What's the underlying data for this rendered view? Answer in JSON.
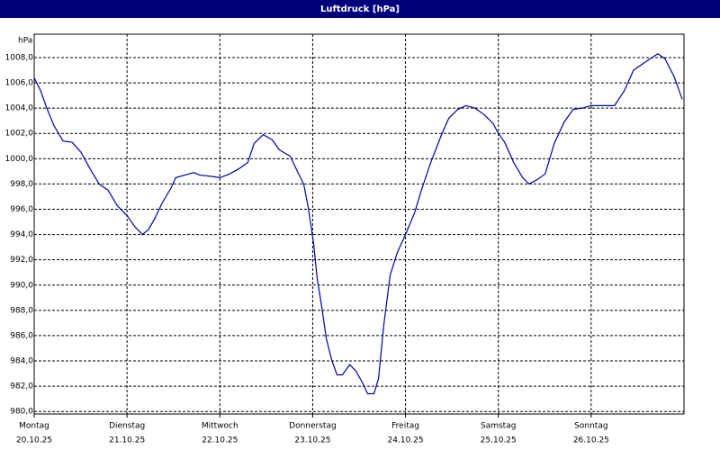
{
  "chart_data": {
    "type": "line",
    "title": "Luftdruck [hPa]",
    "y_label": "hPa",
    "color": "#0000a0",
    "grid": true,
    "xlim": [
      0,
      7
    ],
    "xticks": [
      {
        "value": 0,
        "label": "Montag",
        "date": "20.10.25"
      },
      {
        "value": 1,
        "label": "Dienstag",
        "date": "21.10.25"
      },
      {
        "value": 2,
        "label": "Mittwoch",
        "date": "22.10.25"
      },
      {
        "value": 3,
        "label": "Donnerstag",
        "date": "23.10.25"
      },
      {
        "value": 4,
        "label": "Freitag",
        "date": "24.10.25"
      },
      {
        "value": 5,
        "label": "Samstag",
        "date": "25.10.25"
      },
      {
        "value": 6,
        "label": "Sonntag",
        "date": "26.10.25"
      }
    ],
    "ylim": [
      979.8,
      1009.85
    ],
    "yticks": [
      {
        "value": 980,
        "label": "980,0"
      },
      {
        "value": 982,
        "label": "982,0"
      },
      {
        "value": 984,
        "label": "984,0"
      },
      {
        "value": 986,
        "label": "986,0"
      },
      {
        "value": 988,
        "label": "988,0"
      },
      {
        "value": 990,
        "label": "990,0"
      },
      {
        "value": 992,
        "label": "992,0"
      },
      {
        "value": 994,
        "label": "994,0"
      },
      {
        "value": 996,
        "label": "996,0"
      },
      {
        "value": 998,
        "label": "998,0"
      },
      {
        "value": 1000,
        "label": "1000,0"
      },
      {
        "value": 1002,
        "label": "1002,0"
      },
      {
        "value": 1004,
        "label": "1004,0"
      },
      {
        "value": 1006,
        "label": "1006,0"
      },
      {
        "value": 1008,
        "label": "1008,0"
      }
    ],
    "x": [
      0,
      0.068,
      0.136,
      0.214,
      0.311,
      0.408,
      0.505,
      0.602,
      0.699,
      0.796,
      0.893,
      1.0,
      1.087,
      1.165,
      1.233,
      1.301,
      1.379,
      1.476,
      1.524,
      1.621,
      1.718,
      1.786,
      1.913,
      2.0,
      2.107,
      2.204,
      2.301,
      2.369,
      2.466,
      2.563,
      2.641,
      2.757,
      2.835,
      2.903,
      2.951,
      3.01,
      3.049,
      3.097,
      3.146,
      3.204,
      3.262,
      3.32,
      3.398,
      3.466,
      3.534,
      3.592,
      3.66,
      3.709,
      3.767,
      3.835,
      3.913,
      4.0,
      4.097,
      4.175,
      4.272,
      4.388,
      4.466,
      4.563,
      4.65,
      4.748,
      4.845,
      4.942,
      5.0,
      5.068,
      5.165,
      5.262,
      5.33,
      5.408,
      5.505,
      5.602,
      5.709,
      5.806,
      5.903,
      6.0,
      6.097,
      6.252,
      6.359,
      6.456,
      6.573,
      6.718,
      6.796,
      6.893,
      6.981
    ],
    "values": [
      1006.4,
      1005.4,
      1004.0,
      1002.6,
      1001.4,
      1001.3,
      1000.5,
      999.2,
      998.0,
      997.5,
      996.3,
      995.5,
      994.6,
      994.0,
      994.4,
      995.3,
      996.5,
      997.7,
      998.5,
      998.7,
      998.9,
      998.7,
      998.6,
      998.5,
      998.8,
      999.2,
      999.7,
      1001.2,
      1001.9,
      1001.5,
      1000.7,
      1000.2,
      999.0,
      998.0,
      996.2,
      993.3,
      990.5,
      988.3,
      985.8,
      984.1,
      982.9,
      982.9,
      983.7,
      983.2,
      982.3,
      981.4,
      981.4,
      982.6,
      986.9,
      990.8,
      992.6,
      994.0,
      995.7,
      997.6,
      999.7,
      1001.9,
      1003.2,
      1003.9,
      1004.2,
      1004.0,
      1003.5,
      1002.8,
      1002.0,
      1001.3,
      999.7,
      998.5,
      998.0,
      998.3,
      998.8,
      1001.2,
      1002.9,
      1003.9,
      1004.0,
      1004.2,
      1004.2,
      1004.2,
      1005.4,
      1007.0,
      1007.6,
      1008.3,
      1007.9,
      1006.5,
      1004.7
    ]
  }
}
